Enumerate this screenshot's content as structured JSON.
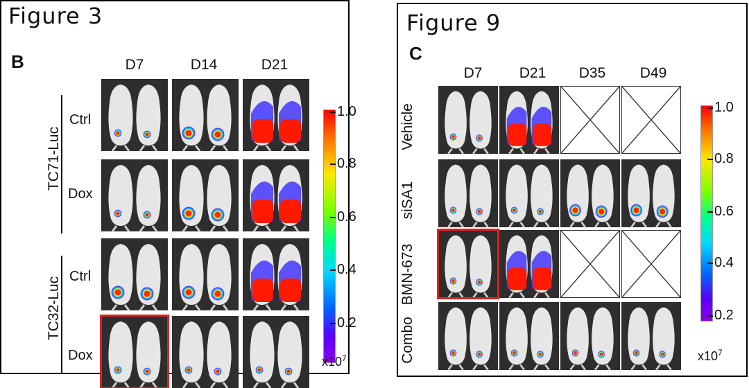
{
  "left": {
    "title": "Figure 3",
    "panel_letter": "B",
    "columns": [
      "D7",
      "D14",
      "D21"
    ],
    "groups": [
      {
        "label": "TC71-Luc",
        "rows": [
          "Ctrl",
          "Dox"
        ]
      },
      {
        "label": "TC32-Luc",
        "rows": [
          "Ctrl",
          "Dox"
        ]
      }
    ],
    "colorbar": {
      "ticks": [
        "1.0",
        "0.8",
        "0.6",
        "0.4",
        "0.2"
      ],
      "unit_base": "x10",
      "unit_exp": "7"
    }
  },
  "right": {
    "title": "Figure 9",
    "panel_letter": "C",
    "columns": [
      "D7",
      "D21",
      "D35",
      "D49"
    ],
    "rows": [
      "Vehicle",
      "siSA1",
      "BMN-673",
      "Combo"
    ],
    "colorbar": {
      "ticks": [
        "1.0",
        "0.8",
        "0.6",
        "0.4",
        "0.2"
      ],
      "unit_base": "x10",
      "unit_exp": "7"
    }
  },
  "colors": {
    "highlight": "#e02020",
    "background": "#2a2a2a"
  }
}
